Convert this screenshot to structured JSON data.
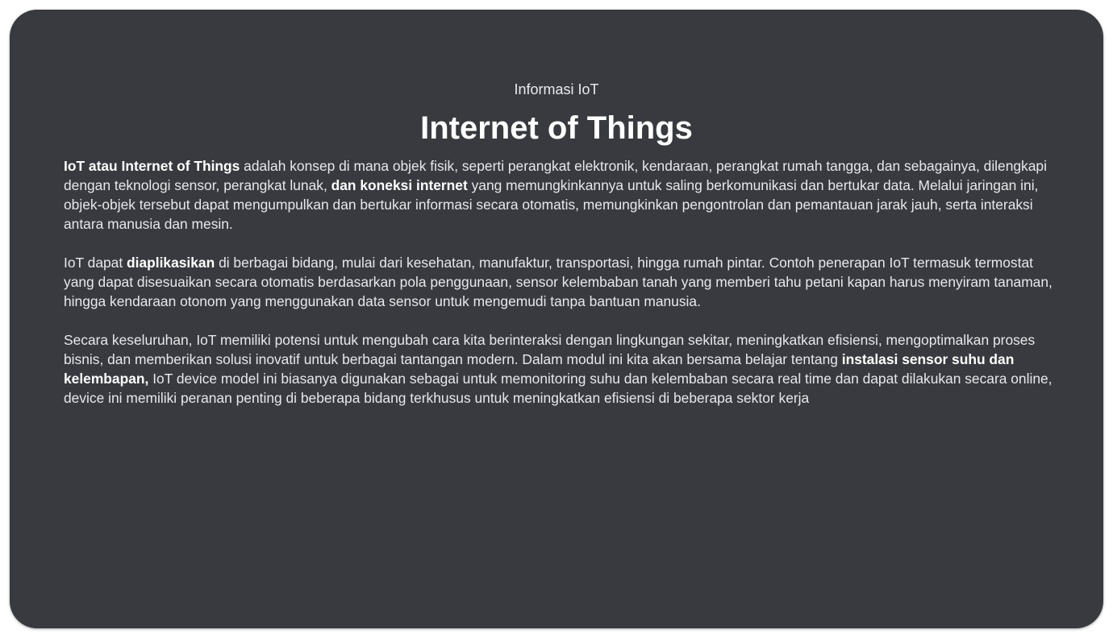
{
  "header": {
    "eyebrow": "Informasi IoT",
    "title": "Internet of Things"
  },
  "paragraphs": [
    {
      "bold_1": "IoT atau Internet of Things",
      "text_1": " adalah konsep di mana objek fisik, seperti perangkat elektronik, kendaraan, perangkat rumah tangga, dan sebagainya, dilengkapi dengan teknologi sensor, perangkat lunak, ",
      "bold_2": "dan koneksi internet",
      "text_2": " yang memungkinkannya untuk saling berkomunikasi dan bertukar data. Melalui jaringan ini, objek-objek tersebut dapat mengumpulkan dan bertukar informasi secara otomatis, memungkinkan pengontrolan dan pemantauan jarak jauh, serta interaksi antara manusia dan mesin."
    },
    {
      "text_1": "IoT dapat ",
      "bold_1": "diaplikasikan",
      "text_2": " di berbagai bidang, mulai dari kesehatan, manufaktur, transportasi, hingga rumah pintar. Contoh penerapan IoT termasuk termostat yang dapat disesuaikan secara otomatis berdasarkan pola penggunaan, sensor kelembaban tanah yang memberi tahu petani kapan harus menyiram tanaman, hingga kendaraan otonom yang menggunakan data sensor untuk mengemudi tanpa bantuan manusia."
    },
    {
      "text_1": "Secara keseluruhan, IoT memiliki potensi untuk mengubah cara kita berinteraksi dengan lingkungan sekitar, meningkatkan efisiensi, mengoptimalkan proses bisnis, dan memberikan solusi inovatif untuk berbagai tantangan modern. Dalam modul ini kita akan bersama belajar tentang ",
      "bold_1": "instalasi sensor suhu dan kelembapan,",
      "text_2": " IoT device model ini biasanya digunakan sebagai untuk memonitoring suhu dan kelembaban secara real time dan dapat dilakukan secara online, device ini memiliki peranan penting di beberapa bidang  terkhusus untuk meningkatkan efisiensi di beberapa sektor kerja"
    }
  ]
}
